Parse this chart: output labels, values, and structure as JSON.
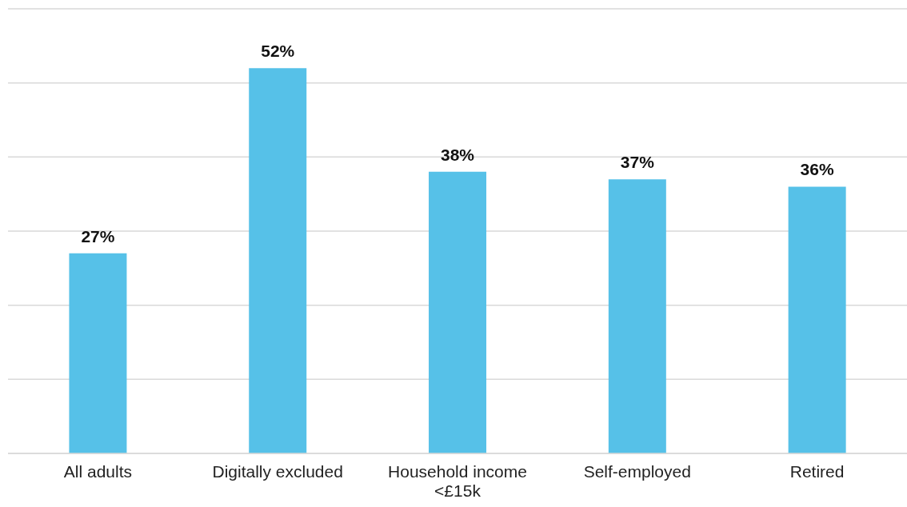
{
  "chart_data": {
    "type": "bar",
    "categories": [
      "All adults",
      "Digitally excluded",
      "Household income <£15k",
      "Self-employed",
      "Retired"
    ],
    "values": [
      27,
      52,
      38,
      37,
      36
    ],
    "value_labels": [
      "27%",
      "52%",
      "38%",
      "37%",
      "36%"
    ],
    "color": "#56c1e8",
    "ylim": [
      0,
      60
    ],
    "yticks": [
      {
        "value": 0,
        "label": null
      },
      {
        "value": 10,
        "label": null
      },
      {
        "value": 20,
        "label": null
      },
      {
        "value": 30,
        "label": null
      },
      {
        "value": 40,
        "label": null
      },
      {
        "value": 50,
        "label": null
      },
      {
        "value": 60,
        "label": null
      }
    ],
    "grid": "y",
    "tick_labels": "x"
  }
}
